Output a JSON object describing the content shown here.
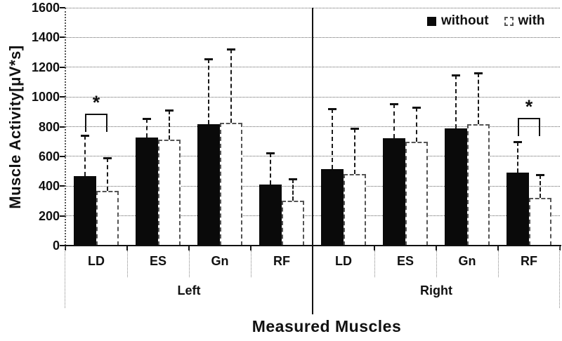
{
  "chart_data": {
    "type": "bar",
    "title": "",
    "ylabel": "Muscle Activity[μV*s]",
    "xlabel": "Measured Muscles",
    "ylim": [
      0,
      1600
    ],
    "ytick_step": 200,
    "yticks": [
      1600,
      1400,
      1200,
      1000,
      800,
      600,
      400,
      200,
      0
    ],
    "grid": "horizontal-dotted",
    "legend": {
      "position": "top-right-inside",
      "items": [
        {
          "label": "without",
          "fill": "#0a0a0a"
        },
        {
          "label": "with",
          "fill": "#ffffff"
        }
      ]
    },
    "groups": [
      {
        "name": "Left",
        "categories": [
          "LD",
          "ES",
          "Gn",
          "RF"
        ],
        "series": [
          {
            "name": "without",
            "fill": "#0a0a0a",
            "values": [
              465,
              725,
              815,
              410
            ],
            "errors_upper": [
              275,
              130,
              440,
              215
            ]
          },
          {
            "name": "with",
            "fill": "#ffffff",
            "values": [
              370,
              715,
              825,
              300
            ],
            "errors_upper": [
              220,
              195,
              495,
              150
            ]
          }
        ]
      },
      {
        "name": "Right",
        "categories": [
          "LD",
          "ES",
          "Gn",
          "RF"
        ],
        "series": [
          {
            "name": "without",
            "fill": "#0a0a0a",
            "values": [
              515,
              720,
              790,
              490
            ],
            "errors_upper": [
              405,
              235,
              355,
              210
            ]
          },
          {
            "name": "with",
            "fill": "#ffffff",
            "values": [
              480,
              700,
              815,
              320
            ],
            "errors_upper": [
              310,
              230,
              345,
              155
            ]
          }
        ]
      }
    ],
    "significance": [
      {
        "group": "Left",
        "category": "LD",
        "label": "*",
        "bracket_y": 885
      },
      {
        "group": "Right",
        "category": "RF",
        "label": "*",
        "bracket_y": 860
      }
    ]
  },
  "colors": {
    "bar_without": "#0a0a0a",
    "bar_with": "#ffffff",
    "line": "#111111",
    "grid_dotted": "#666666"
  }
}
